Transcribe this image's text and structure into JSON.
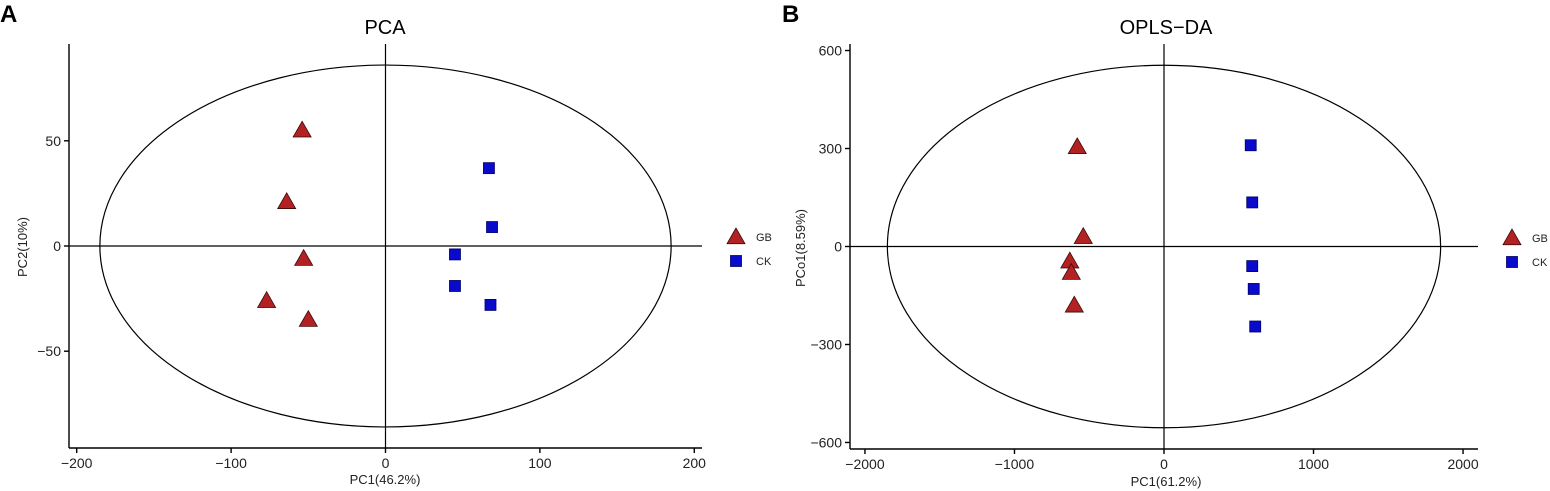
{
  "figure": {
    "panel_letters": [
      "A",
      "B"
    ]
  },
  "colors": {
    "GB": "#b22222",
    "CK": "#0a0acc",
    "axis": "#000000"
  },
  "chart_data": [
    {
      "type": "scatter",
      "title": "PCA",
      "xlabel": "PC1(46.2%)",
      "ylabel": "PC2(10%)",
      "xlim": [
        -205,
        205
      ],
      "ylim": [
        -96,
        96
      ],
      "x_ticks": [
        -200,
        -100,
        0,
        100,
        200
      ],
      "y_ticks": [
        50,
        0,
        -50
      ],
      "y_tick_labels": [
        "50",
        "0",
        "−50"
      ],
      "x_tick_labels": [
        "−200",
        "−100",
        "0",
        "100",
        "200"
      ],
      "grid": false,
      "legend_position": "right",
      "ellipse": {
        "center": [
          0,
          0
        ],
        "semi_x": 185,
        "semi_y": 86
      },
      "series": [
        {
          "name": "GB",
          "marker": "triangle",
          "points": [
            [
              -54,
              55
            ],
            [
              -64,
              21
            ],
            [
              -53,
              -6
            ],
            [
              -77,
              -26
            ],
            [
              -50,
              -35
            ]
          ]
        },
        {
          "name": "CK",
          "marker": "square",
          "points": [
            [
              67,
              37
            ],
            [
              69,
              9
            ],
            [
              45,
              -4
            ],
            [
              45,
              -19
            ],
            [
              68,
              -28
            ]
          ]
        }
      ]
    },
    {
      "type": "scatter",
      "title": "OPLS−DA",
      "xlabel": "PC1(61.2%)",
      "ylabel": "PCo1(8.59%)",
      "xlim": [
        -2100,
        2100
      ],
      "ylim": [
        -620,
        620
      ],
      "x_ticks": [
        -2000,
        -1000,
        0,
        1000,
        2000
      ],
      "y_ticks": [
        600,
        300,
        0,
        -300,
        -600
      ],
      "x_tick_labels": [
        "−2000",
        "−1000",
        "0",
        "1000",
        "2000"
      ],
      "y_tick_labels": [
        "600",
        "300",
        "0",
        "−300",
        "−600"
      ],
      "grid": false,
      "legend_position": "right",
      "ellipse": {
        "center": [
          0,
          0
        ],
        "semi_x": 1850,
        "semi_y": 555
      },
      "series": [
        {
          "name": "GB",
          "marker": "triangle",
          "points": [
            [
              -580,
              305
            ],
            [
              -540,
              30
            ],
            [
              -630,
              -45
            ],
            [
              -620,
              -80
            ],
            [
              -600,
              -180
            ]
          ]
        },
        {
          "name": "CK",
          "marker": "square",
          "points": [
            [
              580,
              310
            ],
            [
              590,
              135
            ],
            [
              590,
              -60
            ],
            [
              600,
              -130
            ],
            [
              610,
              -245
            ]
          ]
        }
      ]
    }
  ]
}
